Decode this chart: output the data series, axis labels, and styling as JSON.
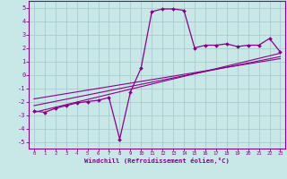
{
  "xlabel": "Windchill (Refroidissement éolien,°C)",
  "bg_color": "#c8e8e8",
  "grid_color": "#aacccc",
  "line_color": "#880088",
  "xlim": [
    -0.5,
    23.5
  ],
  "ylim": [
    -5.5,
    5.5
  ],
  "xticks": [
    0,
    1,
    2,
    3,
    4,
    5,
    6,
    7,
    8,
    9,
    10,
    11,
    12,
    13,
    14,
    15,
    16,
    17,
    18,
    19,
    20,
    21,
    22,
    23
  ],
  "yticks": [
    -5,
    -4,
    -3,
    -2,
    -1,
    0,
    1,
    2,
    3,
    4,
    5
  ],
  "main_curve_x": [
    0,
    1,
    2,
    3,
    4,
    5,
    6,
    7,
    8,
    9,
    10,
    11,
    12,
    13,
    14,
    15,
    16,
    17,
    18,
    19,
    20,
    21,
    22,
    23
  ],
  "main_curve_y": [
    -2.7,
    -2.8,
    -2.5,
    -2.3,
    -2.1,
    -2.0,
    -1.9,
    -1.7,
    -4.8,
    -1.3,
    0.5,
    4.7,
    4.9,
    4.9,
    4.8,
    2.0,
    2.2,
    2.2,
    2.3,
    2.1,
    2.2,
    2.2,
    2.7,
    1.7
  ],
  "line1_x": [
    0,
    23
  ],
  "line1_y": [
    -2.8,
    1.6
  ],
  "line2_x": [
    0,
    23
  ],
  "line2_y": [
    -2.3,
    1.35
  ],
  "line3_x": [
    0,
    23
  ],
  "line3_y": [
    -1.8,
    1.2
  ]
}
